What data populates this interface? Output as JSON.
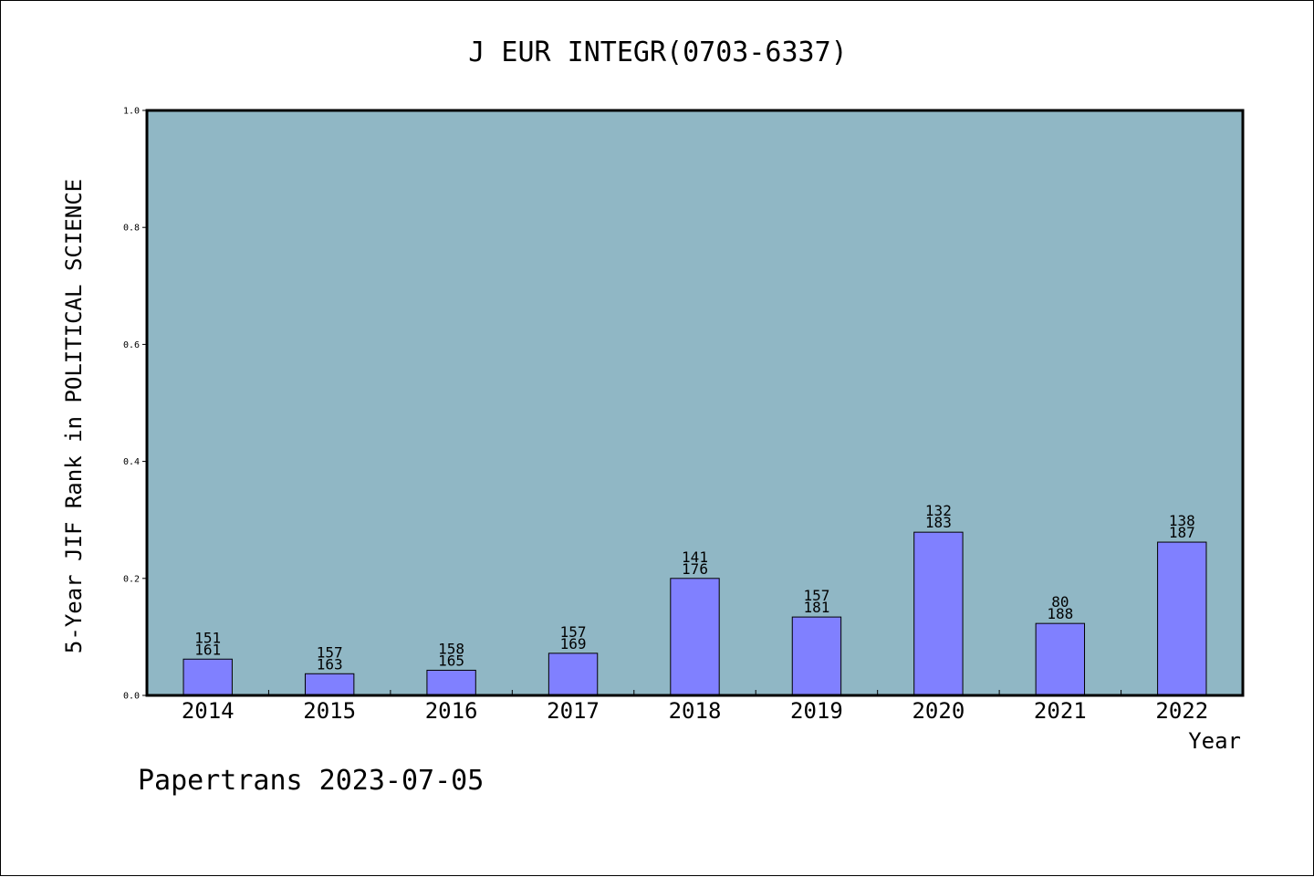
{
  "chart_data": {
    "type": "bar",
    "title": "J EUR INTEGR(0703-6337)",
    "xlabel": "Year",
    "ylabel": "5-Year JIF Rank in POLITICAL SCIENCE",
    "ylim": [
      0.0,
      1.0
    ],
    "yticks": [
      "0.0",
      "0.2",
      "0.4",
      "0.6",
      "0.8",
      "1.0"
    ],
    "grid": false,
    "categories": [
      "2014",
      "2015",
      "2016",
      "2017",
      "2018",
      "2019",
      "2020",
      "2021",
      "2022"
    ],
    "values": [
      0.062,
      0.037,
      0.043,
      0.072,
      0.2,
      0.134,
      0.279,
      0.123,
      0.262
    ],
    "labels_top": [
      "151",
      "157",
      "158",
      "157",
      "141",
      "157",
      "132",
      "80",
      "138"
    ],
    "labels_bottom": [
      "161",
      "163",
      "165",
      "169",
      "176",
      "181",
      "183",
      "188",
      "187"
    ],
    "colors": {
      "plot_background": "#90b7c5",
      "bar_fill": "#8080ff",
      "bar_edge": "#000000"
    }
  },
  "footer": {
    "text": "Papertrans 2023-07-05"
  }
}
